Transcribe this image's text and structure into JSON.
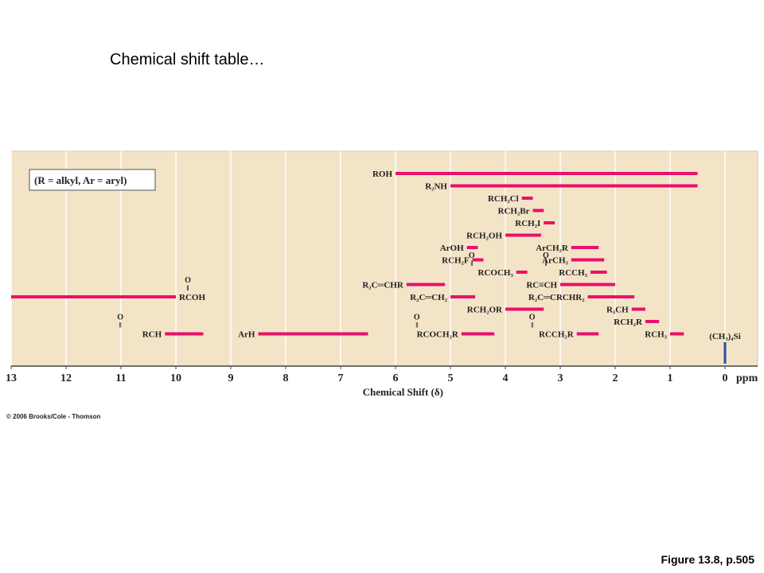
{
  "slide": {
    "title": "Chemical shift table…",
    "copyright": "© 2006 Brooks/Cole - Thomson",
    "caption": "Figure 13.8, p.505"
  },
  "colors": {
    "panel": "#f3e4c8",
    "bar": "#e8106a",
    "tms": "#1f4fa8",
    "gridline": "#ffffff",
    "axis": "#444444"
  },
  "chart_data": {
    "type": "range-bar",
    "key_note": "(R = alkyl, Ar = aryl)",
    "xlabel": "Chemical Shift (δ)",
    "unit": "ppm",
    "x_reversed": true,
    "xlim": [
      13,
      0
    ],
    "xticks": [
      13,
      12,
      11,
      10,
      9,
      8,
      7,
      6,
      5,
      4,
      3,
      2,
      1,
      0
    ],
    "grid": true,
    "ranges": [
      {
        "label": "ROH",
        "from": 6.0,
        "to": 0.5,
        "row": 0,
        "label_side": "left"
      },
      {
        "label": "R₂NH",
        "from": 5.0,
        "to": 0.5,
        "row": 1,
        "label_side": "left"
      },
      {
        "label": "RCH₂Cl",
        "from": 3.7,
        "to": 3.5,
        "row": 2,
        "label_side": "left"
      },
      {
        "label": "RCH₂Br",
        "from": 3.5,
        "to": 3.3,
        "row": 3,
        "label_side": "left"
      },
      {
        "label": "RCH₂I",
        "from": 3.3,
        "to": 3.1,
        "row": 4,
        "label_side": "left"
      },
      {
        "label": "RCH₂OH",
        "from": 4.0,
        "to": 3.35,
        "row": 5,
        "label_side": "left"
      },
      {
        "label": "ArOH",
        "from": 4.7,
        "to": 4.5,
        "row": 6,
        "label_side": "left"
      },
      {
        "label": "ArCH₂R",
        "from": 2.8,
        "to": 2.3,
        "row": 6,
        "label_side": "left"
      },
      {
        "label": "RCH₂F",
        "from": 4.6,
        "to": 4.4,
        "row": 7,
        "label_side": "left"
      },
      {
        "label": "ArCH₃",
        "from": 2.8,
        "to": 2.2,
        "row": 7,
        "label_side": "left"
      },
      {
        "label": "RCOCH₃",
        "above": "O ‖",
        "from": 3.8,
        "to": 3.6,
        "row": 8,
        "label_side": "left"
      },
      {
        "label": "RCCH₃",
        "above": "O ‖",
        "from": 2.45,
        "to": 2.15,
        "row": 8,
        "label_side": "left"
      },
      {
        "label": "R₂C═CHR",
        "from": 5.8,
        "to": 5.1,
        "row": 9,
        "label_side": "left"
      },
      {
        "label": "RC≡CH",
        "from": 3.0,
        "to": 2.0,
        "row": 9,
        "label_side": "left"
      },
      {
        "label": "RCOH",
        "above": "O ‖",
        "from": 13.0,
        "to": 10.0,
        "row": 10,
        "label_side": "right"
      },
      {
        "label": "R₂C═CH₂",
        "from": 5.0,
        "to": 4.55,
        "row": 10,
        "label_side": "left"
      },
      {
        "label": "R₂C═CRCHR₂",
        "from": 2.5,
        "to": 1.65,
        "row": 10,
        "label_side": "left"
      },
      {
        "label": "RCH₂OR",
        "from": 4.0,
        "to": 3.3,
        "row": 11,
        "label_side": "left"
      },
      {
        "label": "R₃CH",
        "from": 1.7,
        "to": 1.45,
        "row": 11,
        "label_side": "left"
      },
      {
        "label": "RCH₂R",
        "from": 1.45,
        "to": 1.2,
        "row": 12,
        "label_side": "left"
      },
      {
        "label": "RCH",
        "above": "O ‖",
        "from": 10.2,
        "to": 9.5,
        "row": 13,
        "label_side": "left"
      },
      {
        "label": "ArH",
        "from": 8.5,
        "to": 6.5,
        "row": 13,
        "label_side": "left"
      },
      {
        "label": "RCOCH₂R",
        "above": "O ‖",
        "from": 4.8,
        "to": 4.2,
        "row": 13,
        "label_side": "left"
      },
      {
        "label": "RCCH₂R",
        "above": "O ‖",
        "from": 2.7,
        "to": 2.3,
        "row": 13,
        "label_side": "left"
      },
      {
        "label": "RCH₃",
        "from": 1.0,
        "to": 0.75,
        "row": 13,
        "label_side": "left"
      }
    ],
    "reference": {
      "label": "(CH₃)₄Si",
      "at": 0.0
    }
  }
}
